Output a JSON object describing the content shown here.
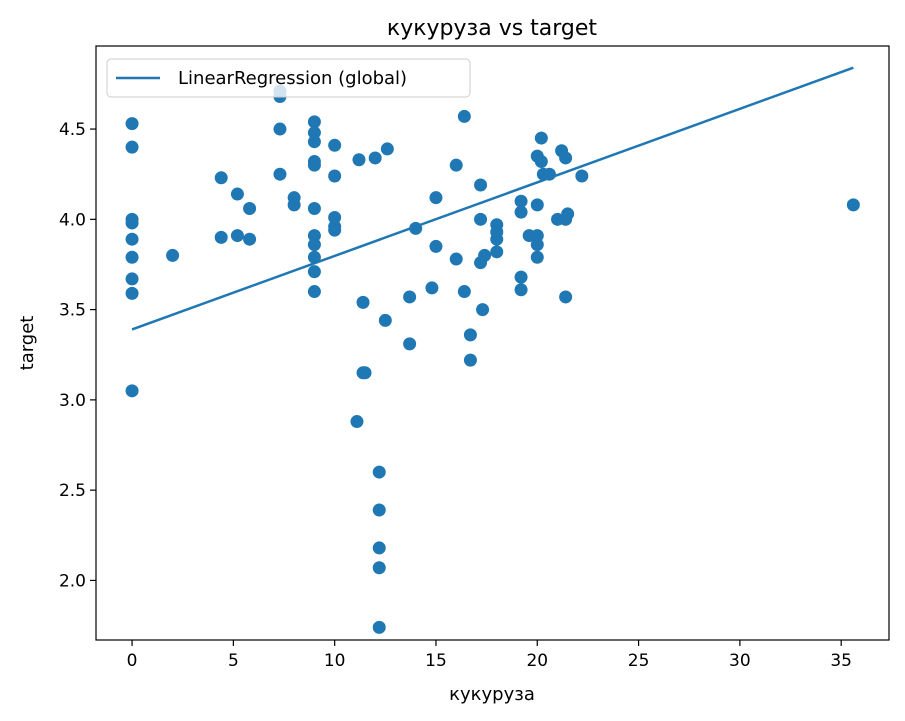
{
  "chart_data": {
    "type": "scatter",
    "title": "кукуруза vs target",
    "xlabel": "кукуруза",
    "ylabel": "target",
    "xlim": [
      -1.78,
      37.36
    ],
    "ylim": [
      1.67,
      4.96
    ],
    "xticks": [
      0,
      5,
      10,
      15,
      20,
      25,
      30,
      35
    ],
    "xtick_labels": [
      "0",
      "5",
      "10",
      "15",
      "20",
      "25",
      "30",
      "35"
    ],
    "yticks": [
      2.0,
      2.5,
      3.0,
      3.5,
      4.0,
      4.5
    ],
    "ytick_labels": [
      "2.0",
      "2.5",
      "3.0",
      "3.5",
      "4.0",
      "4.5"
    ],
    "grid": false,
    "legend_position": "upper-left",
    "colors": {
      "series": "#1f77b4",
      "axes": "#000000",
      "background": "#ffffff"
    },
    "series": [
      {
        "name": "LinearRegression (global)",
        "type": "line",
        "x": [
          0,
          35.6
        ],
        "y": [
          3.39,
          4.84
        ]
      },
      {
        "type": "scatter",
        "points": [
          [
            0,
            4.53
          ],
          [
            0,
            4.4
          ],
          [
            0,
            4.0
          ],
          [
            0,
            3.98
          ],
          [
            0,
            3.89
          ],
          [
            0,
            3.79
          ],
          [
            0,
            3.67
          ],
          [
            0,
            3.59
          ],
          [
            0,
            3.05
          ],
          [
            2.0,
            3.8
          ],
          [
            4.4,
            4.23
          ],
          [
            4.4,
            3.9
          ],
          [
            5.2,
            4.14
          ],
          [
            5.2,
            3.91
          ],
          [
            5.8,
            4.06
          ],
          [
            5.8,
            3.89
          ],
          [
            7.3,
            4.71
          ],
          [
            7.3,
            4.68
          ],
          [
            7.3,
            4.5
          ],
          [
            7.3,
            4.25
          ],
          [
            8.0,
            4.12
          ],
          [
            8.0,
            4.08
          ],
          [
            9.0,
            4.54
          ],
          [
            9.0,
            4.48
          ],
          [
            9.0,
            4.43
          ],
          [
            9.0,
            4.32
          ],
          [
            9.0,
            4.3
          ],
          [
            9.0,
            4.06
          ],
          [
            9.0,
            3.91
          ],
          [
            9.0,
            3.86
          ],
          [
            9.0,
            3.79
          ],
          [
            9.0,
            3.71
          ],
          [
            9.0,
            3.6
          ],
          [
            10.0,
            4.41
          ],
          [
            10.0,
            4.24
          ],
          [
            10.0,
            4.01
          ],
          [
            10.0,
            3.96
          ],
          [
            10.0,
            3.94
          ],
          [
            11.2,
            4.33
          ],
          [
            11.1,
            2.88
          ],
          [
            11.4,
            3.54
          ],
          [
            11.4,
            3.15
          ],
          [
            11.5,
            3.15
          ],
          [
            12.0,
            4.34
          ],
          [
            12.2,
            2.6
          ],
          [
            12.2,
            2.39
          ],
          [
            12.2,
            2.18
          ],
          [
            12.2,
            2.07
          ],
          [
            12.2,
            1.74
          ],
          [
            12.6,
            4.39
          ],
          [
            12.5,
            3.44
          ],
          [
            13.7,
            3.57
          ],
          [
            13.7,
            3.31
          ],
          [
            14.0,
            3.95
          ],
          [
            14.8,
            3.62
          ],
          [
            15.0,
            4.12
          ],
          [
            15.0,
            3.85
          ],
          [
            16.0,
            4.3
          ],
          [
            16.0,
            3.78
          ],
          [
            16.4,
            4.57
          ],
          [
            16.4,
            3.6
          ],
          [
            16.7,
            3.36
          ],
          [
            16.7,
            3.22
          ],
          [
            17.2,
            4.19
          ],
          [
            17.2,
            4.0
          ],
          [
            17.2,
            3.76
          ],
          [
            17.3,
            3.5
          ],
          [
            17.4,
            3.8
          ],
          [
            18.0,
            3.97
          ],
          [
            18.0,
            3.93
          ],
          [
            18.0,
            3.89
          ],
          [
            18.0,
            3.82
          ],
          [
            19.2,
            4.1
          ],
          [
            19.2,
            4.04
          ],
          [
            19.2,
            3.68
          ],
          [
            19.2,
            3.61
          ],
          [
            19.6,
            3.91
          ],
          [
            20.0,
            4.35
          ],
          [
            20.0,
            4.08
          ],
          [
            20.0,
            3.91
          ],
          [
            20.0,
            3.86
          ],
          [
            20.0,
            3.79
          ],
          [
            20.2,
            4.45
          ],
          [
            20.2,
            4.32
          ],
          [
            20.3,
            4.25
          ],
          [
            20.6,
            4.25
          ],
          [
            21.0,
            4.0
          ],
          [
            21.2,
            4.38
          ],
          [
            21.4,
            4.34
          ],
          [
            21.4,
            4.0
          ],
          [
            21.4,
            3.57
          ],
          [
            21.5,
            4.03
          ],
          [
            22.2,
            4.24
          ],
          [
            35.6,
            4.08
          ]
        ]
      }
    ]
  }
}
